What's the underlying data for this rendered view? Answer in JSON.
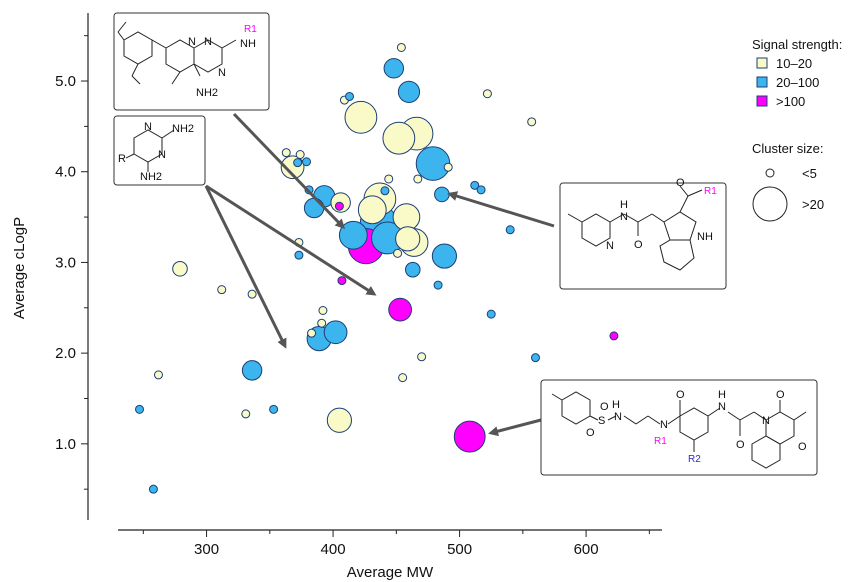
{
  "colors": {
    "low": "#fafac8",
    "mid": "#3cb4ee",
    "high": "#ff00ff",
    "stroke": "#1c3f74",
    "axis": "#222222",
    "arrow": "#555555"
  },
  "chart_data": {
    "type": "scatter",
    "xlabel": "Average MW",
    "ylabel": "Average cLogP",
    "xlim": [
      230,
      660
    ],
    "ylim": [
      0.05,
      5.75
    ],
    "xticks": [
      300,
      400,
      500,
      600
    ],
    "xtick_labels": [
      "300",
      "400",
      "500",
      "600"
    ],
    "yticks": [
      1.0,
      2.0,
      3.0,
      4.0,
      5.0
    ],
    "ytick_labels": [
      "1.0",
      "2.0",
      "3.0",
      "4.0",
      "5.0"
    ],
    "grid": false,
    "legend": {
      "position": "top-right",
      "signal_title": "Signal strength:",
      "signal_items": [
        {
          "label": "10–20",
          "color_key": "low"
        },
        {
          "label": "20–100",
          "color_key": "mid"
        },
        {
          "label": ">100",
          "color_key": "high"
        }
      ],
      "size_title": "Cluster size:",
      "size_items": [
        {
          "label": "<5",
          "size": 1
        },
        {
          "label": ">20",
          "size": 22
        }
      ]
    },
    "points": [
      {
        "x": 247,
        "y": 1.38,
        "size": 1,
        "signal": "mid"
      },
      {
        "x": 258,
        "y": 0.5,
        "size": 1,
        "signal": "mid"
      },
      {
        "x": 262,
        "y": 1.76,
        "size": 1,
        "signal": "low"
      },
      {
        "x": 279,
        "y": 2.93,
        "size": 2,
        "signal": "low"
      },
      {
        "x": 312,
        "y": 2.7,
        "size": 1,
        "signal": "low"
      },
      {
        "x": 331,
        "y": 1.33,
        "size": 1,
        "signal": "low"
      },
      {
        "x": 336,
        "y": 2.65,
        "size": 1,
        "signal": "low"
      },
      {
        "x": 336,
        "y": 1.81,
        "size": 4,
        "signal": "mid"
      },
      {
        "x": 353,
        "y": 1.38,
        "size": 1,
        "signal": "mid"
      },
      {
        "x": 363,
        "y": 4.21,
        "size": 1,
        "signal": "low"
      },
      {
        "x": 368,
        "y": 4.05,
        "size": 6,
        "signal": "low"
      },
      {
        "x": 372,
        "y": 4.1,
        "size": 1,
        "signal": "mid"
      },
      {
        "x": 373,
        "y": 3.22,
        "size": 1,
        "signal": "low"
      },
      {
        "x": 373,
        "y": 3.08,
        "size": 1,
        "signal": "mid"
      },
      {
        "x": 374,
        "y": 4.19,
        "size": 1,
        "signal": "low"
      },
      {
        "x": 379,
        "y": 4.11,
        "size": 1,
        "signal": "mid"
      },
      {
        "x": 381,
        "y": 3.8,
        "size": 1,
        "signal": "mid"
      },
      {
        "x": 383,
        "y": 2.22,
        "size": 1,
        "signal": "low"
      },
      {
        "x": 385,
        "y": 3.6,
        "size": 4,
        "signal": "mid"
      },
      {
        "x": 389,
        "y": 2.16,
        "size": 7,
        "signal": "mid"
      },
      {
        "x": 391,
        "y": 2.33,
        "size": 1,
        "signal": "low"
      },
      {
        "x": 392,
        "y": 2.47,
        "size": 1,
        "signal": "low"
      },
      {
        "x": 393,
        "y": 3.73,
        "size": 5,
        "signal": "mid"
      },
      {
        "x": 402,
        "y": 2.23,
        "size": 6,
        "signal": "mid"
      },
      {
        "x": 405,
        "y": 3.62,
        "size": 1,
        "signal": "high"
      },
      {
        "x": 405,
        "y": 1.26,
        "size": 7,
        "signal": "low"
      },
      {
        "x": 406,
        "y": 3.66,
        "size": 4,
        "signal": "low"
      },
      {
        "x": 407,
        "y": 2.8,
        "size": 1,
        "signal": "high"
      },
      {
        "x": 409,
        "y": 4.79,
        "size": 1,
        "signal": "low"
      },
      {
        "x": 413,
        "y": 4.83,
        "size": 1,
        "signal": "mid"
      },
      {
        "x": 416,
        "y": 3.3,
        "size": 10,
        "signal": "mid"
      },
      {
        "x": 422,
        "y": 4.6,
        "size": 14,
        "signal": "low"
      },
      {
        "x": 426,
        "y": 3.18,
        "size": 18,
        "signal": "high"
      },
      {
        "x": 431,
        "y": 3.58,
        "size": 10,
        "signal": "low"
      },
      {
        "x": 436,
        "y": 3.43,
        "size": 20,
        "signal": "mid"
      },
      {
        "x": 437,
        "y": 3.7,
        "size": 14,
        "signal": "low"
      },
      {
        "x": 441,
        "y": 3.79,
        "size": 1,
        "signal": "mid"
      },
      {
        "x": 443,
        "y": 3.27,
        "size": 14,
        "signal": "mid"
      },
      {
        "x": 444,
        "y": 3.92,
        "size": 1,
        "signal": "low"
      },
      {
        "x": 448,
        "y": 5.14,
        "size": 4,
        "signal": "mid"
      },
      {
        "x": 452,
        "y": 4.37,
        "size": 14,
        "signal": "low"
      },
      {
        "x": 451,
        "y": 3.1,
        "size": 1,
        "signal": "low"
      },
      {
        "x": 453,
        "y": 2.48,
        "size": 6,
        "signal": "high"
      },
      {
        "x": 454,
        "y": 5.37,
        "size": 1,
        "signal": "low"
      },
      {
        "x": 455,
        "y": 1.73,
        "size": 1,
        "signal": "low"
      },
      {
        "x": 458,
        "y": 3.5,
        "size": 9,
        "signal": "low"
      },
      {
        "x": 459,
        "y": 3.26,
        "size": 7,
        "signal": "low"
      },
      {
        "x": 460,
        "y": 4.88,
        "size": 5,
        "signal": "mid"
      },
      {
        "x": 464,
        "y": 3.22,
        "size": 10,
        "signal": "low"
      },
      {
        "x": 463,
        "y": 2.92,
        "size": 2,
        "signal": "mid"
      },
      {
        "x": 466,
        "y": 4.42,
        "size": 15,
        "signal": "low"
      },
      {
        "x": 467,
        "y": 3.92,
        "size": 1,
        "signal": "low"
      },
      {
        "x": 470,
        "y": 1.96,
        "size": 1,
        "signal": "low"
      },
      {
        "x": 479,
        "y": 4.09,
        "size": 16,
        "signal": "mid"
      },
      {
        "x": 483,
        "y": 2.75,
        "size": 1,
        "signal": "mid"
      },
      {
        "x": 486,
        "y": 3.75,
        "size": 2,
        "signal": "mid"
      },
      {
        "x": 488,
        "y": 3.07,
        "size": 7,
        "signal": "mid"
      },
      {
        "x": 491,
        "y": 4.05,
        "size": 1,
        "signal": "low"
      },
      {
        "x": 508,
        "y": 1.08,
        "size": 13,
        "signal": "high"
      },
      {
        "x": 512,
        "y": 3.85,
        "size": 1,
        "signal": "mid"
      },
      {
        "x": 517,
        "y": 3.8,
        "size": 1,
        "signal": "mid"
      },
      {
        "x": 522,
        "y": 4.86,
        "size": 1,
        "signal": "low"
      },
      {
        "x": 525,
        "y": 2.43,
        "size": 1,
        "signal": "mid"
      },
      {
        "x": 540,
        "y": 3.36,
        "size": 1,
        "signal": "mid"
      },
      {
        "x": 557,
        "y": 4.55,
        "size": 1,
        "signal": "low"
      },
      {
        "x": 560,
        "y": 1.95,
        "size": 1,
        "signal": "mid"
      },
      {
        "x": 622,
        "y": 2.19,
        "size": 1,
        "signal": "high"
      }
    ],
    "annotations": [
      {
        "name": "structure-1",
        "labels": [
          "R1",
          "NH",
          "N",
          "N",
          "N",
          "NH2"
        ]
      },
      {
        "name": "structure-2",
        "labels": [
          "N",
          "NH2",
          "N",
          "R",
          "NH2"
        ]
      },
      {
        "name": "structure-3",
        "labels": [
          "N",
          "H",
          "N",
          "O",
          "R1",
          "NH",
          "O"
        ]
      },
      {
        "name": "structure-4",
        "labels": [
          "S",
          "O",
          "O",
          "N",
          "H",
          "N",
          "R1",
          "O",
          "H",
          "N",
          "R2",
          "O",
          "N",
          "O",
          "O"
        ]
      }
    ]
  }
}
